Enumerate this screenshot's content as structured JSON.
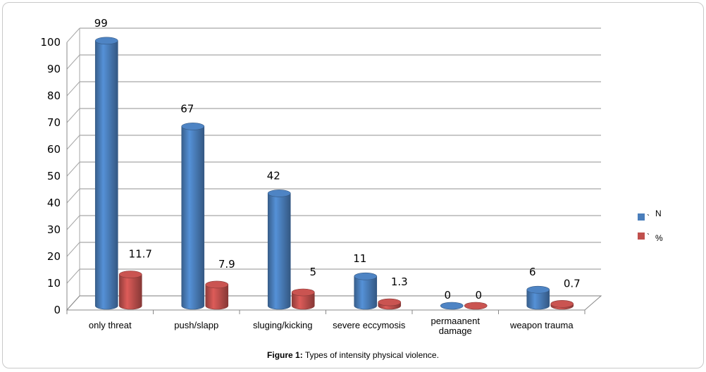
{
  "caption": {
    "label": "Figure 1:",
    "text": "Types of intensity physical violence."
  },
  "chart_data": {
    "type": "bar",
    "title": "",
    "xlabel": "",
    "ylabel": "",
    "ylim": [
      0,
      100
    ],
    "yticks": [
      "0",
      "10",
      "20",
      "30",
      "40",
      "50",
      "60",
      "70",
      "80",
      "90",
      "100"
    ],
    "grid": true,
    "legend_position": "right",
    "categories": [
      "only threat",
      "push/slapp",
      "sluging/kicking",
      "severe eccymosis",
      "permaanent damage",
      "weapon trauma"
    ],
    "category_lines": [
      [
        "only threat"
      ],
      [
        "push/slapp"
      ],
      [
        "sluging/kicking"
      ],
      [
        "severe eccymosis"
      ],
      [
        "permaanent",
        "damage"
      ],
      [
        "weapon trauma"
      ]
    ],
    "series": [
      {
        "name": "N",
        "legend_marker": "`",
        "color": "#4a7ebb",
        "values": [
          99,
          67,
          42,
          11,
          0,
          6
        ],
        "labels": [
          "99",
          "67",
          "42",
          "11",
          "0",
          "6"
        ]
      },
      {
        "name": "%",
        "legend_marker": "`",
        "color": "#c0504d",
        "values": [
          11.7,
          7.9,
          5,
          1.3,
          0,
          0.7
        ],
        "labels": [
          "11.7",
          "7.9",
          "5",
          "1.3",
          "0",
          "0.7"
        ]
      }
    ]
  }
}
